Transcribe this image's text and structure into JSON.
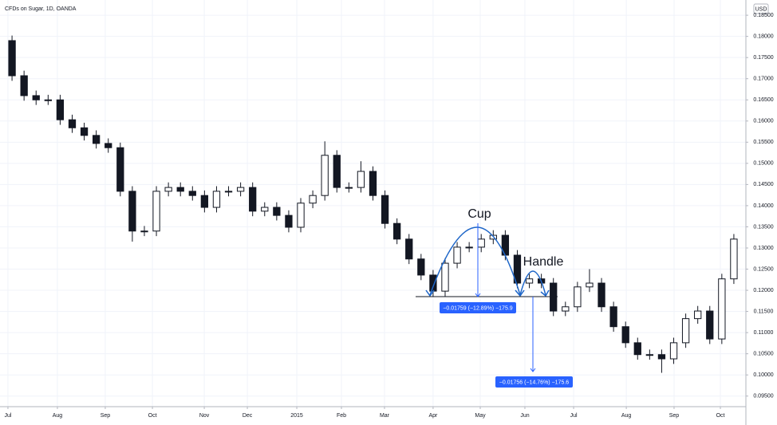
{
  "chart_data": {
    "type": "candlestick",
    "title": "CFDs on Sugar, 1D, OANDA",
    "currency": "USD",
    "x": [
      1,
      2,
      3,
      4,
      5,
      6,
      7,
      8,
      9,
      10,
      11,
      12,
      13,
      14,
      15,
      16,
      17,
      18,
      19,
      20,
      21,
      22,
      23,
      24,
      25,
      26,
      27,
      28,
      29,
      30,
      31,
      32,
      33,
      34,
      35,
      36,
      37,
      38,
      39,
      40,
      41,
      42,
      43,
      44,
      45,
      46,
      47,
      48,
      49,
      50,
      51,
      52,
      53,
      54,
      55,
      56,
      57,
      58,
      59,
      60,
      61
    ],
    "open": [
      0.179,
      0.1707,
      0.166,
      0.165,
      0.165,
      0.1603,
      0.1584,
      0.1566,
      0.1547,
      0.1537,
      0.1434,
      0.134,
      0.134,
      0.1434,
      0.1443,
      0.1434,
      0.1424,
      0.1396,
      0.1434,
      0.1434,
      0.1443,
      0.1387,
      0.1396,
      0.1377,
      0.1349,
      0.1406,
      0.1424,
      0.1519,
      0.1443,
      0.1443,
      0.1481,
      0.1424,
      0.1358,
      0.1321,
      0.1274,
      0.1236,
      0.1198,
      0.1264,
      0.1302,
      0.1302,
      0.1321,
      0.133,
      0.1283,
      0.1217,
      0.1227,
      0.1217,
      0.1151,
      0.1161,
      0.1208,
      0.1217,
      0.1161,
      0.1114,
      0.1076,
      0.1048,
      0.1048,
      0.1038,
      0.1076,
      0.1133,
      0.1151,
      0.1085,
      0.1227
    ],
    "high": [
      0.1802,
      0.1719,
      0.1672,
      0.1662,
      0.1662,
      0.1615,
      0.1596,
      0.1578,
      0.1559,
      0.1549,
      0.1446,
      0.1352,
      0.1446,
      0.1455,
      0.1455,
      0.1446,
      0.1436,
      0.1446,
      0.1446,
      0.1455,
      0.1455,
      0.1408,
      0.1408,
      0.1389,
      0.1418,
      0.1436,
      0.1552,
      0.1531,
      0.1455,
      0.1505,
      0.1493,
      0.1436,
      0.137,
      0.1333,
      0.1286,
      0.1248,
      0.1276,
      0.1314,
      0.1314,
      0.1333,
      0.1342,
      0.1342,
      0.1295,
      0.1239,
      0.1239,
      0.1229,
      0.1173,
      0.122,
      0.125,
      0.1229,
      0.1173,
      0.1126,
      0.1088,
      0.106,
      0.106,
      0.1088,
      0.1145,
      0.1163,
      0.1163,
      0.1239,
      0.1333
    ],
    "low": [
      0.1695,
      0.1648,
      0.1638,
      0.1638,
      0.1591,
      0.1572,
      0.1554,
      0.1535,
      0.1525,
      0.1422,
      0.1315,
      0.1328,
      0.1328,
      0.1422,
      0.1422,
      0.1412,
      0.1384,
      0.1384,
      0.1422,
      0.1422,
      0.1375,
      0.1375,
      0.1365,
      0.1337,
      0.1337,
      0.1394,
      0.1412,
      0.1431,
      0.1431,
      0.1431,
      0.1412,
      0.1346,
      0.1309,
      0.1262,
      0.1224,
      0.1186,
      0.1186,
      0.1252,
      0.129,
      0.129,
      0.1309,
      0.1271,
      0.1205,
      0.1205,
      0.1205,
      0.1139,
      0.1139,
      0.1149,
      0.1196,
      0.1149,
      0.1102,
      0.1064,
      0.1036,
      0.1036,
      0.1005,
      0.1026,
      0.1064,
      0.1121,
      0.1073,
      0.1073,
      0.1215
    ],
    "close": [
      0.1707,
      0.166,
      0.165,
      0.165,
      0.1603,
      0.1584,
      0.1566,
      0.1547,
      0.1537,
      0.1434,
      0.134,
      0.134,
      0.1434,
      0.1443,
      0.1434,
      0.1424,
      0.1396,
      0.1434,
      0.1434,
      0.1443,
      0.1387,
      0.1396,
      0.1377,
      0.1349,
      0.1406,
      0.1424,
      0.1519,
      0.1443,
      0.1443,
      0.1481,
      0.1424,
      0.1358,
      0.1321,
      0.1274,
      0.1236,
      0.1198,
      0.1264,
      0.1302,
      0.1302,
      0.1321,
      0.133,
      0.1283,
      0.1217,
      0.1227,
      0.1217,
      0.1151,
      0.1161,
      0.1208,
      0.1217,
      0.1161,
      0.1114,
      0.1076,
      0.1048,
      0.1048,
      0.1038,
      0.1076,
      0.1133,
      0.1151,
      0.1085,
      0.1227,
      0.1321
    ],
    "up_color": "#ffffff",
    "down_color": "#131722",
    "xlim": [
      0,
      62
    ],
    "xticks": [
      {
        "value": 0.66,
        "label": "Jul"
      },
      {
        "value": 4.77,
        "label": "Aug"
      },
      {
        "value": 8.75,
        "label": "Sep"
      },
      {
        "value": 12.67,
        "label": "Oct"
      },
      {
        "value": 16.98,
        "label": "Nov"
      },
      {
        "value": 20.56,
        "label": "Dec"
      },
      {
        "value": 24.67,
        "label": "2015"
      },
      {
        "value": 28.38,
        "label": "Feb"
      },
      {
        "value": 31.96,
        "label": "Mar"
      },
      {
        "value": 36.0,
        "label": "Apr"
      },
      {
        "value": 39.92,
        "label": "May"
      },
      {
        "value": 43.63,
        "label": "Jun"
      },
      {
        "value": 47.68,
        "label": "Jul"
      },
      {
        "value": 52.06,
        "label": "Aug"
      },
      {
        "value": 56.03,
        "label": "Sep"
      },
      {
        "value": 59.88,
        "label": "Oct"
      }
    ],
    "ylim": [
      0.0925,
      0.1886
    ],
    "yticks": [
      {
        "value": 0.095,
        "label": "0.09500"
      },
      {
        "value": 0.1,
        "label": "0.10000"
      },
      {
        "value": 0.105,
        "label": "0.10500"
      },
      {
        "value": 0.11,
        "label": "0.11000"
      },
      {
        "value": 0.115,
        "label": "0.11500"
      },
      {
        "value": 0.12,
        "label": "0.12000"
      },
      {
        "value": 0.125,
        "label": "0.12500"
      },
      {
        "value": 0.13,
        "label": "0.13000"
      },
      {
        "value": 0.135,
        "label": "0.13500"
      },
      {
        "value": 0.14,
        "label": "0.14000"
      },
      {
        "value": 0.145,
        "label": "0.14500"
      },
      {
        "value": 0.15,
        "label": "0.15000"
      },
      {
        "value": 0.155,
        "label": "0.15500"
      },
      {
        "value": 0.16,
        "label": "0.16000"
      },
      {
        "value": 0.165,
        "label": "0.16500"
      },
      {
        "value": 0.17,
        "label": "0.17000"
      },
      {
        "value": 0.175,
        "label": "0.17500"
      },
      {
        "value": 0.18,
        "label": "0.18000"
      },
      {
        "value": 0.185,
        "label": "0.18500"
      }
    ],
    "grid": true,
    "annotations": {
      "cup": "Cup",
      "handle": "Handle",
      "measure_1": "−0.01759 (−12.89%) −175.9",
      "measure_2": "−0.01756 (−14.76%) −175.6"
    }
  }
}
